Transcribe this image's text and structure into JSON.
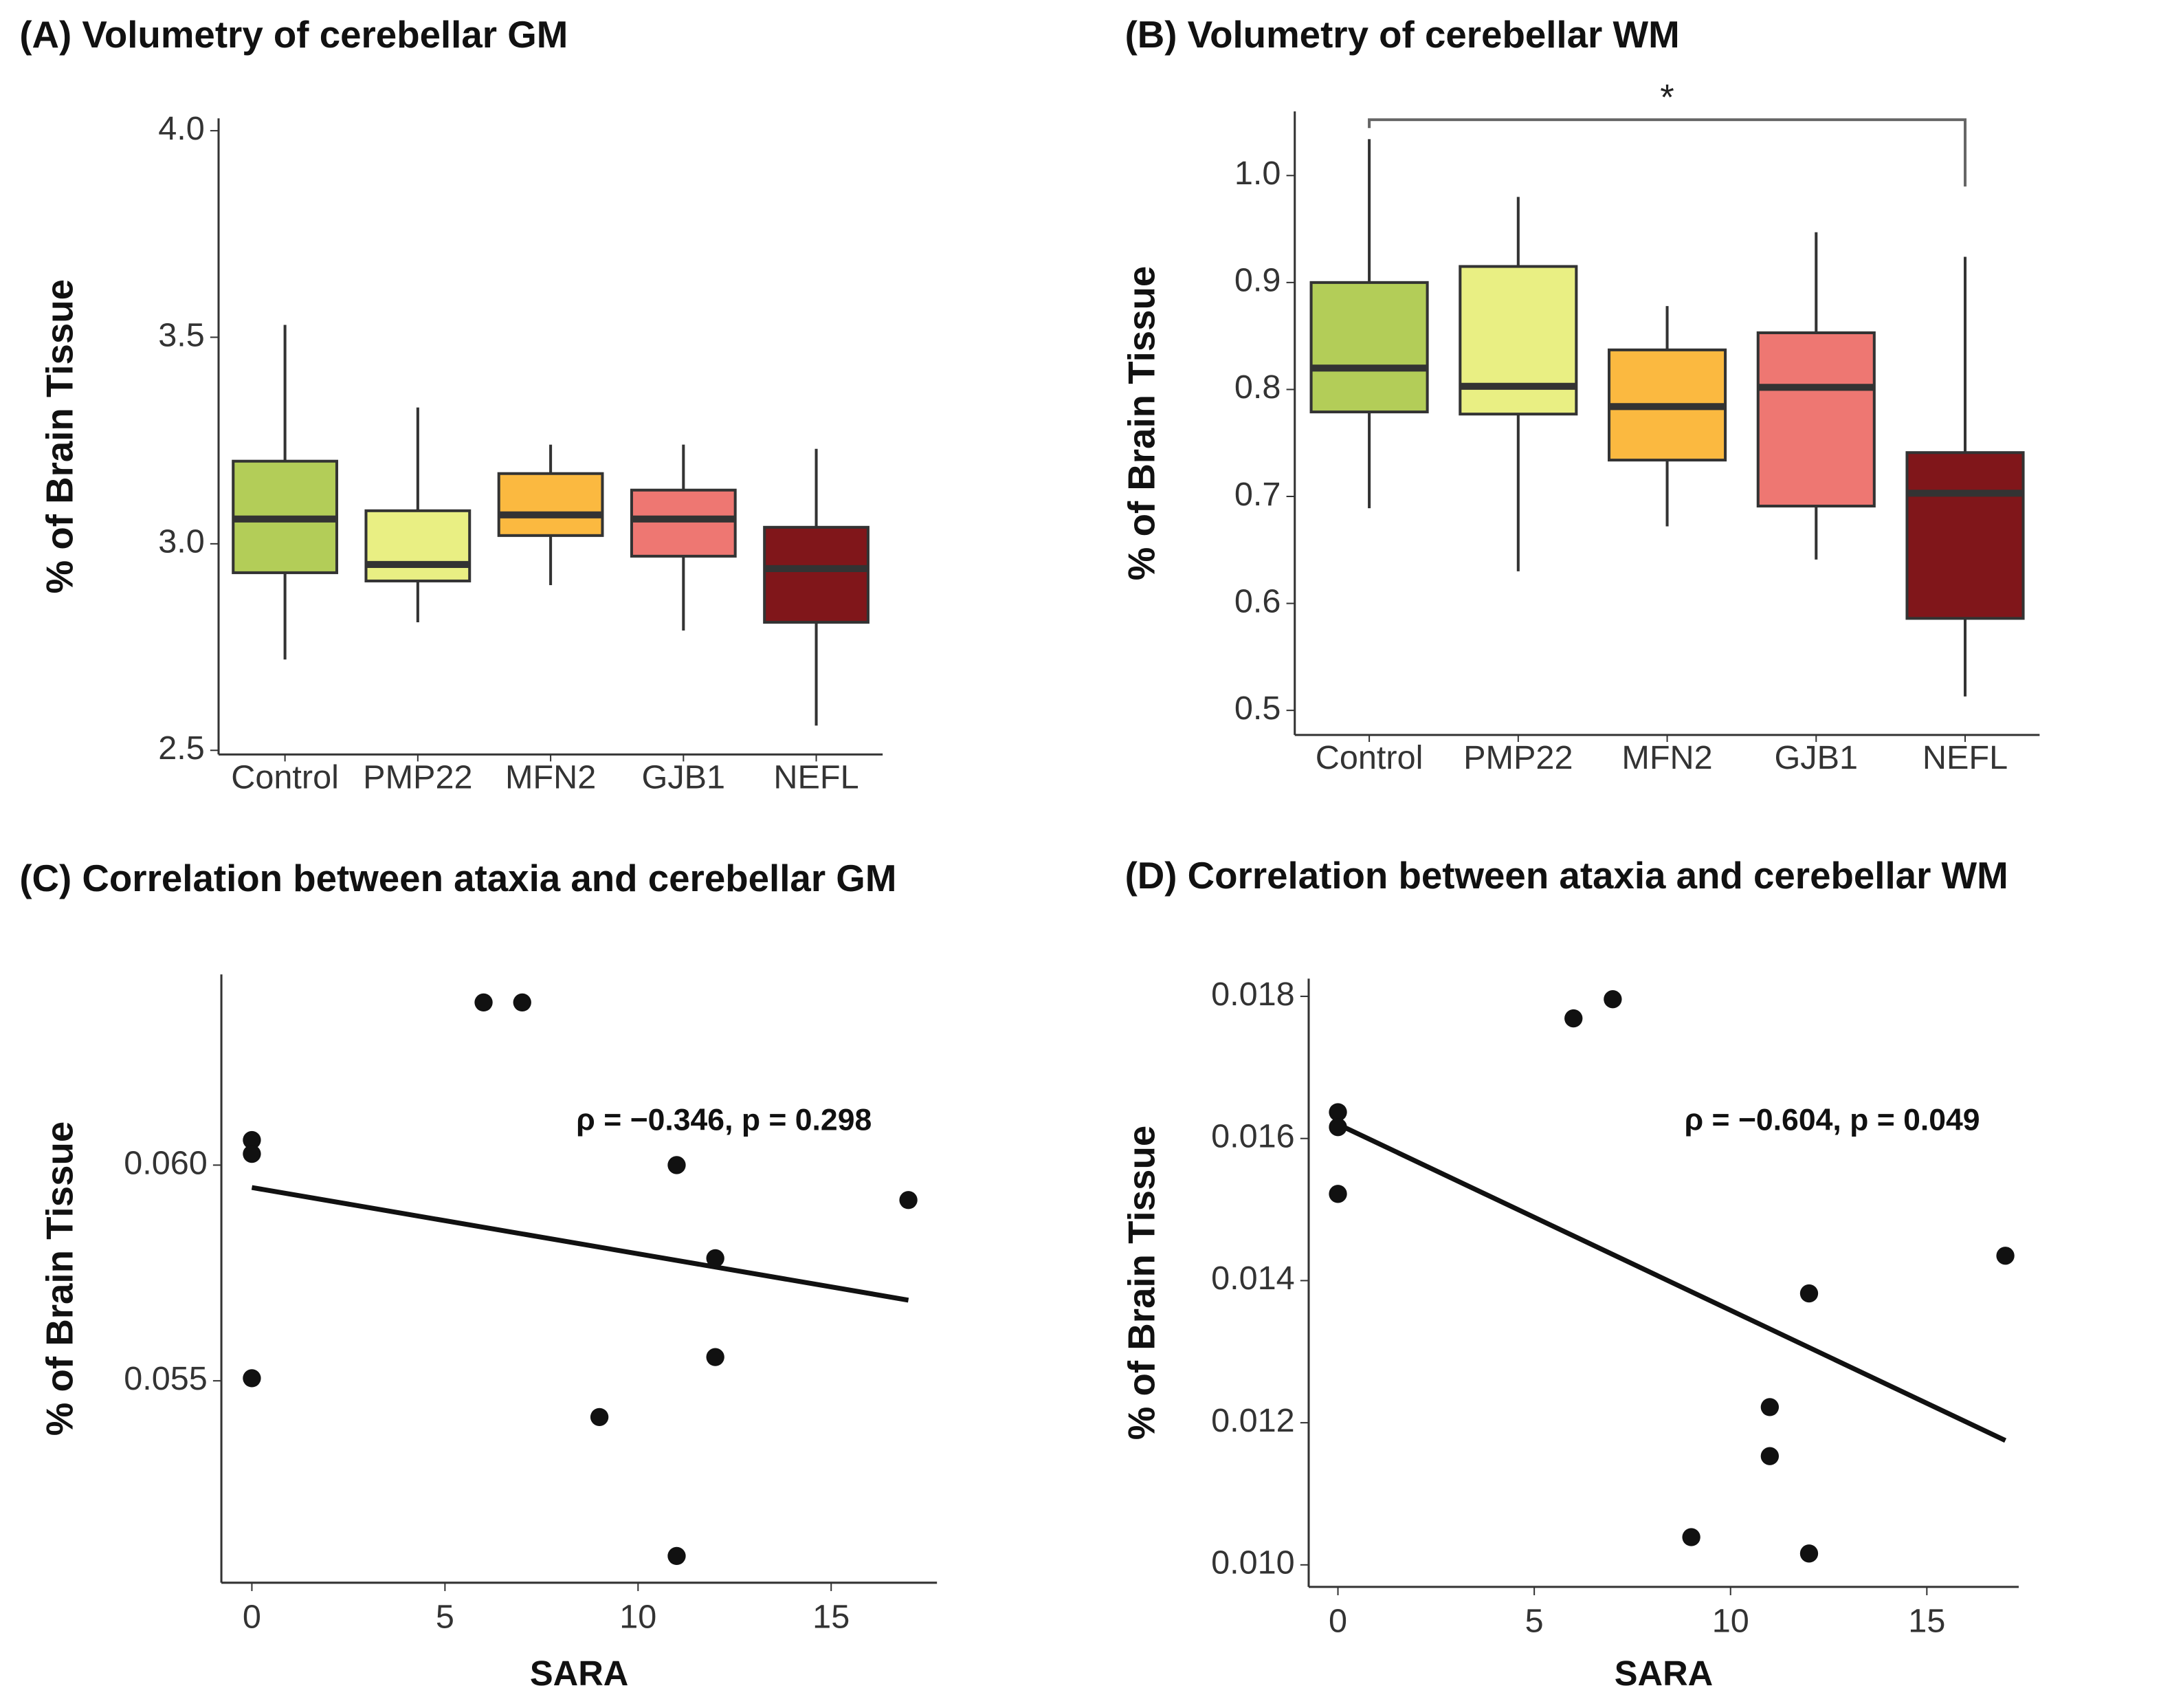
{
  "chart_data": [
    {
      "type": "box",
      "title": "(A) Volumetry of cerebellar GM",
      "y_label": "% of Brain Tissue",
      "categories": [
        "Control",
        "PMP22",
        "MFN2",
        "GJB1",
        "NEFL"
      ],
      "colors": [
        "#b3cd58",
        "#e9ef83",
        "#fbb940",
        "#ee7772",
        "#80161a"
      ],
      "boxes": [
        {
          "whisker_low": 2.72,
          "q1": 2.93,
          "median": 3.06,
          "q3": 3.2,
          "whisker_high": 3.53
        },
        {
          "whisker_low": 2.81,
          "q1": 2.91,
          "median": 2.95,
          "q3": 3.08,
          "whisker_high": 3.33
        },
        {
          "whisker_low": 2.9,
          "q1": 3.02,
          "median": 3.07,
          "q3": 3.17,
          "whisker_high": 3.24
        },
        {
          "whisker_low": 2.79,
          "q1": 2.97,
          "median": 3.06,
          "q3": 3.13,
          "whisker_high": 3.24
        },
        {
          "whisker_low": 2.56,
          "q1": 2.81,
          "median": 2.94,
          "q3": 3.04,
          "whisker_high": 3.23
        }
      ],
      "ylim": [
        2.49,
        4.03
      ],
      "yticks": [
        2.5,
        {
          "value": 3,
          "label": "3.0"
        },
        3.5,
        {
          "value": 4,
          "label": "4.0"
        }
      ]
    },
    {
      "type": "box",
      "title": "(B) Volumetry of cerebellar WM",
      "y_label": "% of Brain Tissue",
      "categories": [
        "Control",
        "PMP22",
        "MFN2",
        "GJB1",
        "NEFL"
      ],
      "colors": [
        "#b3cd58",
        "#e9ef83",
        "#fbb940",
        "#ee7772",
        "#80161a"
      ],
      "boxes": [
        {
          "whisker_low": 0.689,
          "q1": 0.779,
          "median": 0.82,
          "q3": 0.9,
          "whisker_high": 1.034
        },
        {
          "whisker_low": 0.63,
          "q1": 0.777,
          "median": 0.803,
          "q3": 0.915,
          "whisker_high": 0.98
        },
        {
          "whisker_low": 0.672,
          "q1": 0.734,
          "median": 0.784,
          "q3": 0.837,
          "whisker_high": 0.878
        },
        {
          "whisker_low": 0.641,
          "q1": 0.691,
          "median": 0.802,
          "q3": 0.853,
          "whisker_high": 0.947
        },
        {
          "whisker_low": 0.513,
          "q1": 0.586,
          "median": 0.703,
          "q3": 0.741,
          "whisker_high": 0.924
        }
      ],
      "annotation": "*",
      "ylim": [
        0.477,
        1.06
      ],
      "yticks": [
        0.5,
        0.6,
        0.7,
        0.8,
        0.9,
        {
          "value": 1,
          "label": "1.0"
        }
      ]
    },
    {
      "type": "scatter",
      "title": "(C) Correlation between ataxia and cerebellar GM",
      "y_label": "% of Brain Tissue",
      "x_label": "SARA",
      "x": [
        0,
        0,
        0,
        6,
        7,
        11,
        12,
        12,
        9,
        11,
        17
      ],
      "values": [
        0.06058,
        0.06026,
        0.05506,
        0.06377,
        0.06377,
        0.06,
        0.05784,
        0.05555,
        0.05416,
        0.05094,
        0.05919
      ],
      "trend": {
        "x": [
          0,
          17
        ],
        "values": [
          0.05948,
          0.05687
        ]
      },
      "annotation": "ρ = −0.346, p = 0.298",
      "xlim": [
        -0.79,
        17.74
      ],
      "xticks": [
        0,
        5,
        10,
        15
      ],
      "ylim": [
        0.05032,
        0.06442
      ],
      "yticks": [
        0.055,
        {
          "value": 0.06,
          "label": "0.060"
        }
      ]
    },
    {
      "type": "scatter",
      "title": "(D) Correlation between ataxia and cerebellar WM",
      "y_label": "% of Brain Tissue",
      "x_label": "SARA",
      "x": [
        0,
        0,
        0,
        6,
        7,
        12,
        11,
        11,
        9,
        12,
        17
      ],
      "values": [
        0.01637,
        0.01616,
        0.01522,
        0.01769,
        0.01796,
        0.01382,
        0.01222,
        0.01153,
        0.01039,
        0.01016,
        0.01435
      ],
      "trend": {
        "x": [
          0,
          17
        ],
        "values": [
          0.0162,
          0.01175
        ]
      },
      "annotation": "ρ = −0.604, p = 0.049",
      "xlim": [
        -0.745,
        17.34
      ],
      "xticks": [
        0,
        5,
        10,
        15
      ],
      "ylim": [
        0.00969,
        0.01825
      ],
      "yticks": [
        {
          "value": 0.01,
          "label": "0.010"
        },
        0.012,
        0.014,
        0.016,
        0.018
      ]
    }
  ]
}
